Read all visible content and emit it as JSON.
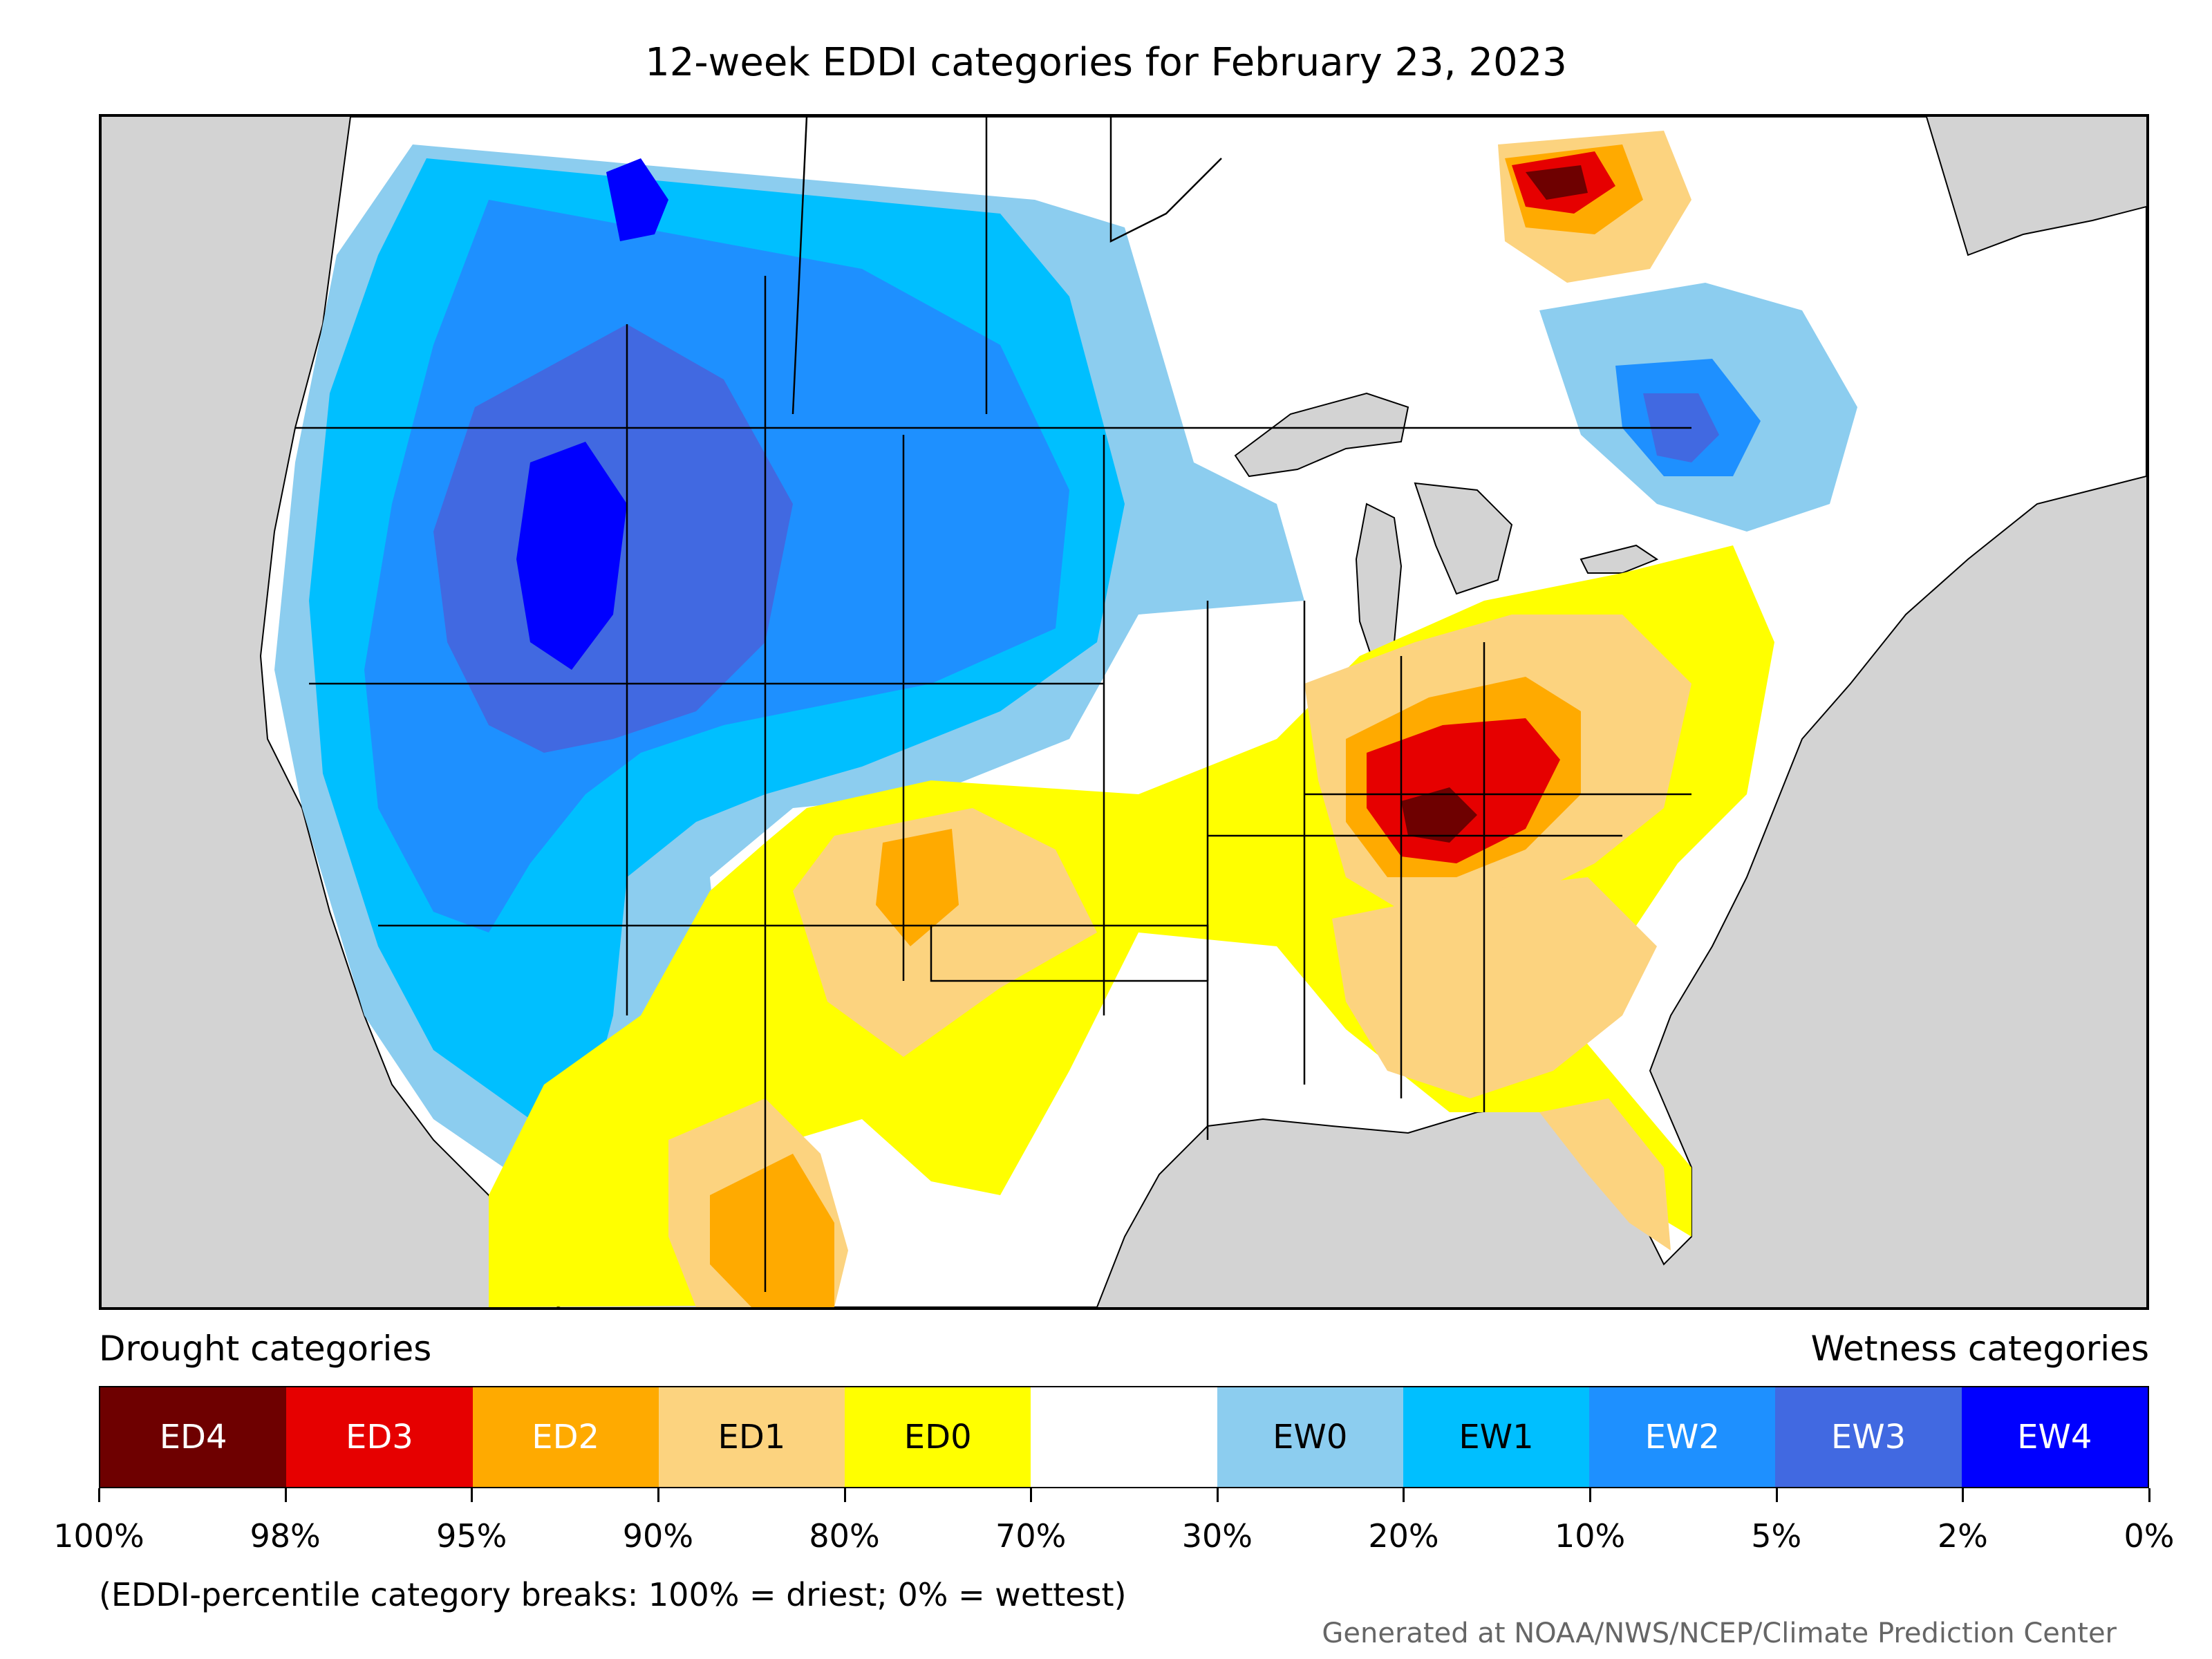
{
  "title": "12-week EDDI categories for February 23, 2023",
  "legend": {
    "left_label": "Drought categories",
    "right_label": "Wetness categories",
    "categories": [
      {
        "label": "ED4",
        "color": "#6e0000",
        "text_color": "#ffffff"
      },
      {
        "label": "ED3",
        "color": "#e60000",
        "text_color": "#ffffff"
      },
      {
        "label": "ED2",
        "color": "#ffaa00",
        "text_color": "#ffffff"
      },
      {
        "label": "ED1",
        "color": "#fcd37f",
        "text_color": "#000000"
      },
      {
        "label": "ED0",
        "color": "#ffff00",
        "text_color": "#000000"
      },
      {
        "label": "",
        "color": "#ffffff",
        "text_color": "#000000"
      },
      {
        "label": "EW0",
        "color": "#8ccdef",
        "text_color": "#000000"
      },
      {
        "label": "EW1",
        "color": "#00bfff",
        "text_color": "#000000"
      },
      {
        "label": "EW2",
        "color": "#1e90ff",
        "text_color": "#ffffff"
      },
      {
        "label": "EW3",
        "color": "#4169e1",
        "text_color": "#ffffff"
      },
      {
        "label": "EW4",
        "color": "#0000ff",
        "text_color": "#ffffff"
      }
    ],
    "ticks": [
      "100%",
      "98%",
      "95%",
      "90%",
      "80%",
      "70%",
      "30%",
      "20%",
      "10%",
      "5%",
      "2%",
      "0%"
    ]
  },
  "note": "(EDDI-percentile category breaks: 100% = driest; 0% = wettest)",
  "credit": "Generated at NOAA/NWS/NCEP/Climate Prediction Center",
  "colors": {
    "ocean": "#d3d3d3",
    "land": "#ffffff",
    "border": "#000000"
  }
}
